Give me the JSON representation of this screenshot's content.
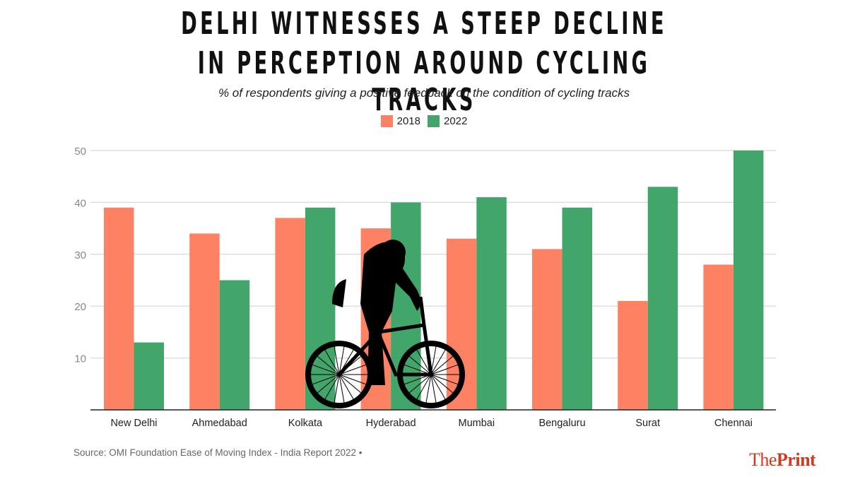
{
  "chart_data": {
    "type": "bar",
    "title": "DELHI WITNESSES A STEEP DECLINE IN PERCEPTION AROUND CYCLING TRACKS",
    "title_lines": [
      "DELHI WITNESSES A STEEP DECLINE",
      "IN PERCEPTION AROUND CYCLING TRACKS"
    ],
    "subtitle": "% of respondents giving a positive feedback on the condition of cycling tracks",
    "xlabel": "",
    "ylabel": "",
    "ylim": [
      0,
      50
    ],
    "yticks": [
      10,
      20,
      30,
      40,
      50
    ],
    "grid": true,
    "legend_position": "top-center",
    "categories": [
      "New Delhi",
      "Ahmedabad",
      "Kolkata",
      "Hyderabad",
      "Mumbai",
      "Bengaluru",
      "Surat",
      "Chennai"
    ],
    "series": [
      {
        "name": "2018",
        "color": "#fd8263",
        "values": [
          39,
          34,
          37,
          35,
          33,
          31,
          21,
          28
        ]
      },
      {
        "name": "2022",
        "color": "#42a66b",
        "values": [
          13,
          25,
          39,
          40,
          41,
          39,
          43,
          50
        ]
      }
    ],
    "annotation": "cyclist silhouette illustration overlaid on chart"
  },
  "footer": {
    "source": "Source: OMI Foundation Ease of Moving Index - India Report 2022 •",
    "logo_light": "The",
    "logo_bold": "Print"
  }
}
